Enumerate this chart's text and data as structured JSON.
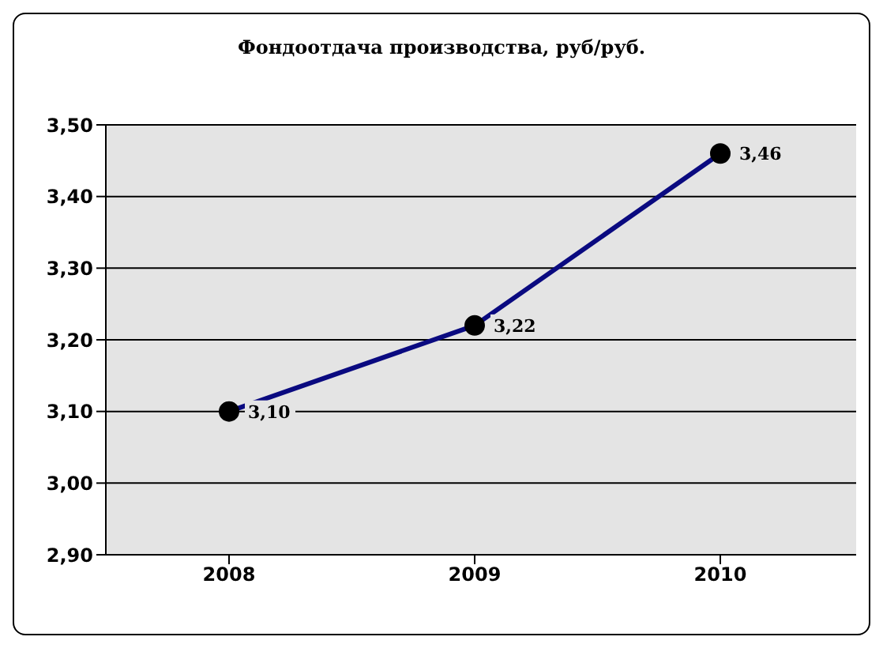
{
  "chart_data": {
    "type": "line",
    "title": "Фондоотдача производства, руб/руб.",
    "categories": [
      "2008",
      "2009",
      "2010"
    ],
    "series": [
      {
        "color": "#0a0a80",
        "values": [
          3.1,
          3.22,
          3.46
        ],
        "value_labels": [
          "3,10",
          "3,22",
          "3,46"
        ]
      }
    ],
    "ylim": [
      2.9,
      3.5
    ],
    "yticks": [
      {
        "value": 2.9,
        "label": "2,90"
      },
      {
        "value": 3.0,
        "label": "3,00"
      },
      {
        "value": 3.1,
        "label": "3,10"
      },
      {
        "value": 3.2,
        "label": "3,20"
      },
      {
        "value": 3.3,
        "label": "3,30"
      },
      {
        "value": 3.4,
        "label": "3,40"
      },
      {
        "value": 3.5,
        "label": "3,50"
      }
    ],
    "grid": "y",
    "marker": "circle",
    "line_style": "solid"
  }
}
